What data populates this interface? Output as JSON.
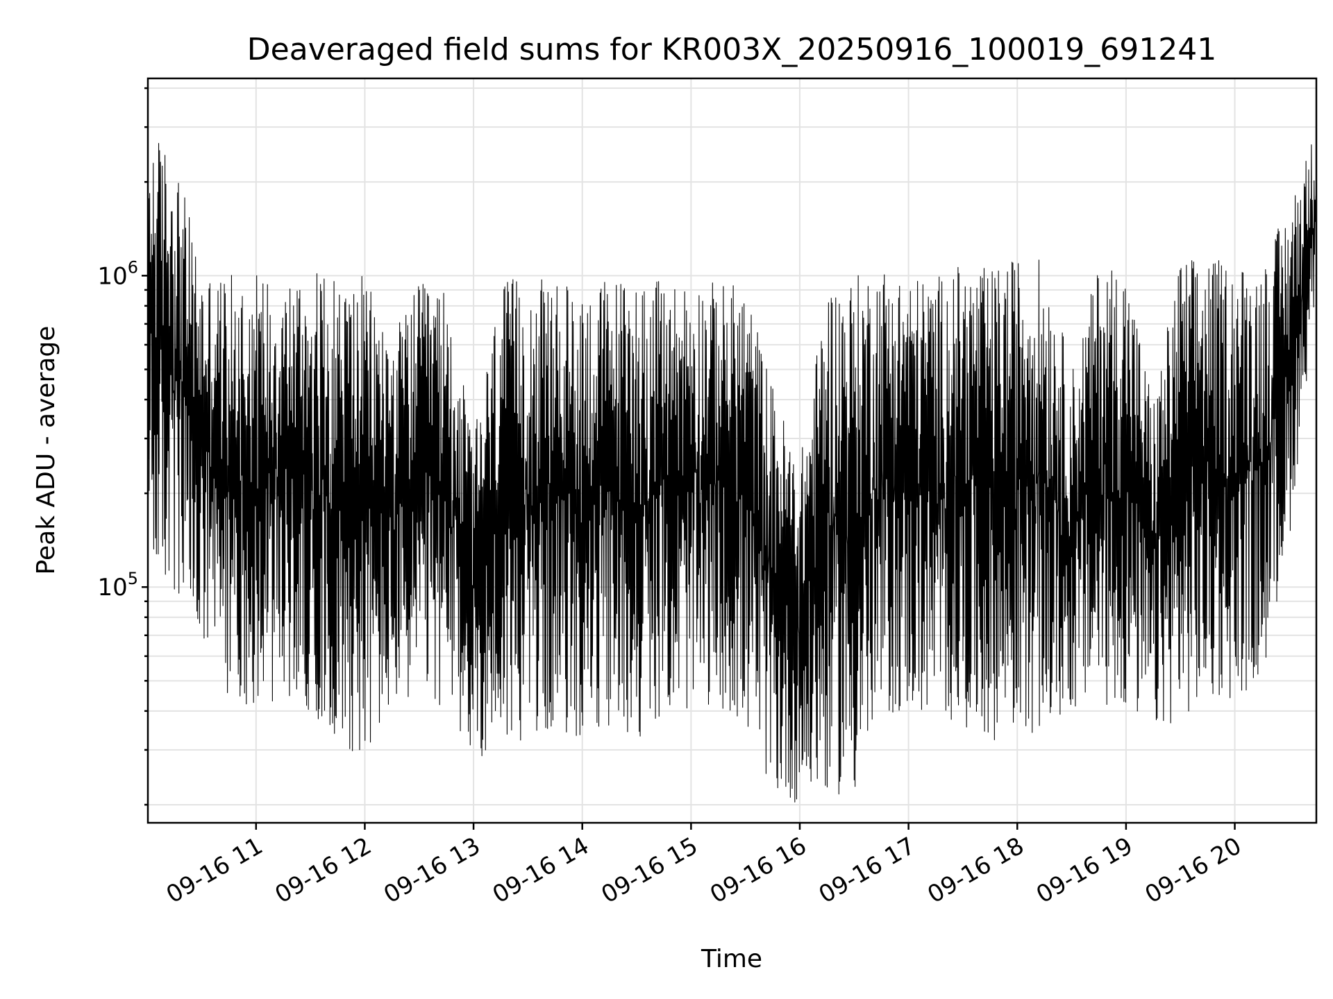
{
  "chart_data": {
    "type": "line",
    "title": "Deaveraged field sums for KR003X_20250916_100019_691241",
    "xlabel": "Time",
    "ylabel": "Peak ADU - average",
    "yscale": "log",
    "ylim": [
      17500,
      4300000
    ],
    "xlim": [
      "2025-09-16 10:00:19",
      "2025-09-16 20:45:00"
    ],
    "x_ticks": [
      "09-16 11",
      "09-16 12",
      "09-16 13",
      "09-16 14",
      "09-16 15",
      "09-16 16",
      "09-16 17",
      "09-16 18",
      "09-16 19",
      "09-16 20"
    ],
    "y_ticks": [
      {
        "value": 100000,
        "base": "10",
        "exp": "5"
      },
      {
        "value": 1000000,
        "base": "10",
        "exp": "6"
      }
    ],
    "grid": true,
    "line_color": "#000000",
    "series": [
      {
        "envelope": {
          "time": [
            "10:00",
            "10:15",
            "10:30",
            "10:45",
            "11:00",
            "11:15",
            "11:30",
            "11:45",
            "12:00",
            "12:15",
            "12:30",
            "12:45",
            "13:00",
            "13:15",
            "13:30",
            "13:45",
            "14:00",
            "14:15",
            "14:30",
            "14:45",
            "15:00",
            "15:15",
            "15:30",
            "15:45",
            "16:00",
            "16:15",
            "16:30",
            "16:45",
            "17:00",
            "17:15",
            "17:30",
            "17:45",
            "18:00",
            "18:15",
            "18:30",
            "18:45",
            "19:00",
            "19:15",
            "19:30",
            "19:45",
            "20:00",
            "20:15",
            "20:30",
            "20:45"
          ],
          "high": [
            3000000,
            2500000,
            1050000,
            1000000,
            1050000,
            1000000,
            1050000,
            1000000,
            1000000,
            650000,
            950000,
            900000,
            300000,
            950000,
            1000000,
            950000,
            920000,
            1000000,
            1000000,
            950000,
            1000000,
            950000,
            950000,
            450000,
            250000,
            950000,
            1000000,
            1100000,
            1000000,
            1000000,
            1100000,
            1050000,
            1150000,
            1150000,
            500000,
            1100000,
            1100000,
            400000,
            1150000,
            1150000,
            1100000,
            1100000,
            1700000,
            3000000
          ],
          "low": [
            120000,
            90000,
            60000,
            45000,
            40000,
            45000,
            40000,
            32000,
            28000,
            40000,
            45000,
            40000,
            28000,
            30000,
            33000,
            35000,
            32000,
            35000,
            32000,
            40000,
            40000,
            42000,
            35000,
            22000,
            20000,
            22000,
            21000,
            38000,
            40000,
            38000,
            36000,
            32000,
            34000,
            34000,
            40000,
            42000,
            40000,
            34000,
            38000,
            42000,
            44000,
            50000,
            140000,
            900000
          ]
        }
      }
    ]
  }
}
